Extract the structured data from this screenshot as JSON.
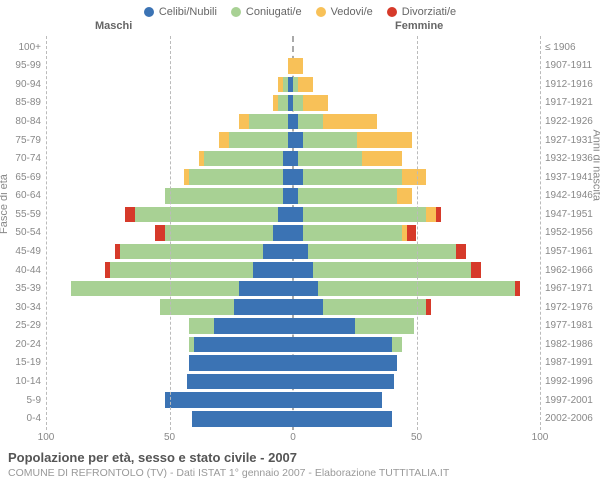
{
  "legend": [
    {
      "label": "Celibi/Nubili",
      "color": "#3b73b4"
    },
    {
      "label": "Coniugati/e",
      "color": "#a8d194"
    },
    {
      "label": "Vedovi/e",
      "color": "#f8c158"
    },
    {
      "label": "Divorziati/e",
      "color": "#d63a2a"
    }
  ],
  "header": {
    "male": "Maschi",
    "female": "Femmine"
  },
  "axis": {
    "left_title": "Fasce di età",
    "right_title": "Anni di nascita",
    "xmax": 100,
    "xticks": [
      100,
      50,
      0,
      50,
      100
    ],
    "grid_at": [
      -100,
      -50,
      50,
      100
    ],
    "grid_color": "#bbbbbb"
  },
  "footer": {
    "title": "Popolazione per età, sesso e stato civile - 2007",
    "subtitle": "COMUNE DI REFRONTOLO (TV) - Dati ISTAT 1° gennaio 2007 - Elaborazione TUTTITALIA.IT"
  },
  "colors": {
    "celibi": "#3b73b4",
    "coniugati": "#a8d194",
    "vedovi": "#f8c158",
    "divorziati": "#d63a2a",
    "text": "#888888",
    "background": "#ffffff"
  },
  "rows": [
    {
      "age": "0-4",
      "birth": "2002-2006",
      "m": [
        41,
        0,
        0,
        0
      ],
      "f": [
        40,
        0,
        0,
        0
      ]
    },
    {
      "age": "5-9",
      "birth": "1997-2001",
      "m": [
        52,
        0,
        0,
        0
      ],
      "f": [
        36,
        0,
        0,
        0
      ]
    },
    {
      "age": "10-14",
      "birth": "1992-1996",
      "m": [
        43,
        0,
        0,
        0
      ],
      "f": [
        41,
        0,
        0,
        0
      ]
    },
    {
      "age": "15-19",
      "birth": "1987-1991",
      "m": [
        42,
        0,
        0,
        0
      ],
      "f": [
        42,
        0,
        0,
        0
      ]
    },
    {
      "age": "20-24",
      "birth": "1982-1986",
      "m": [
        40,
        2,
        0,
        0
      ],
      "f": [
        40,
        4,
        0,
        0
      ]
    },
    {
      "age": "25-29",
      "birth": "1977-1981",
      "m": [
        32,
        10,
        0,
        0
      ],
      "f": [
        25,
        24,
        0,
        0
      ]
    },
    {
      "age": "30-34",
      "birth": "1972-1976",
      "m": [
        24,
        30,
        0,
        0
      ],
      "f": [
        12,
        42,
        0,
        2
      ]
    },
    {
      "age": "35-39",
      "birth": "1967-1971",
      "m": [
        22,
        68,
        0,
        0
      ],
      "f": [
        10,
        80,
        0,
        2
      ]
    },
    {
      "age": "40-44",
      "birth": "1962-1966",
      "m": [
        16,
        58,
        0,
        2
      ],
      "f": [
        8,
        64,
        0,
        4
      ]
    },
    {
      "age": "45-49",
      "birth": "1957-1961",
      "m": [
        12,
        58,
        0,
        2
      ],
      "f": [
        6,
        60,
        0,
        4
      ]
    },
    {
      "age": "50-54",
      "birth": "1952-1956",
      "m": [
        8,
        44,
        0,
        4
      ],
      "f": [
        4,
        40,
        2,
        4
      ]
    },
    {
      "age": "55-59",
      "birth": "1947-1951",
      "m": [
        6,
        58,
        0,
        4
      ],
      "f": [
        4,
        50,
        4,
        2
      ]
    },
    {
      "age": "60-64",
      "birth": "1942-1946",
      "m": [
        4,
        48,
        0,
        0
      ],
      "f": [
        2,
        40,
        6,
        0
      ]
    },
    {
      "age": "65-69",
      "birth": "1937-1941",
      "m": [
        4,
        38,
        2,
        0
      ],
      "f": [
        4,
        40,
        10,
        0
      ]
    },
    {
      "age": "70-74",
      "birth": "1932-1936",
      "m": [
        4,
        32,
        2,
        0
      ],
      "f": [
        2,
        26,
        16,
        0
      ]
    },
    {
      "age": "75-79",
      "birth": "1927-1931",
      "m": [
        2,
        24,
        4,
        0
      ],
      "f": [
        4,
        22,
        22,
        0
      ]
    },
    {
      "age": "80-84",
      "birth": "1922-1926",
      "m": [
        2,
        16,
        4,
        0
      ],
      "f": [
        2,
        10,
        22,
        0
      ]
    },
    {
      "age": "85-89",
      "birth": "1917-1921",
      "m": [
        2,
        4,
        2,
        0
      ],
      "f": [
        0,
        4,
        10,
        0
      ]
    },
    {
      "age": "90-94",
      "birth": "1912-1916",
      "m": [
        2,
        2,
        2,
        0
      ],
      "f": [
        0,
        2,
        6,
        0
      ]
    },
    {
      "age": "95-99",
      "birth": "1907-1911",
      "m": [
        0,
        0,
        2,
        0
      ],
      "f": [
        0,
        0,
        4,
        0
      ]
    },
    {
      "age": "100+",
      "birth": "≤ 1906",
      "m": [
        0,
        0,
        0,
        0
      ],
      "f": [
        0,
        0,
        0,
        0
      ]
    }
  ]
}
